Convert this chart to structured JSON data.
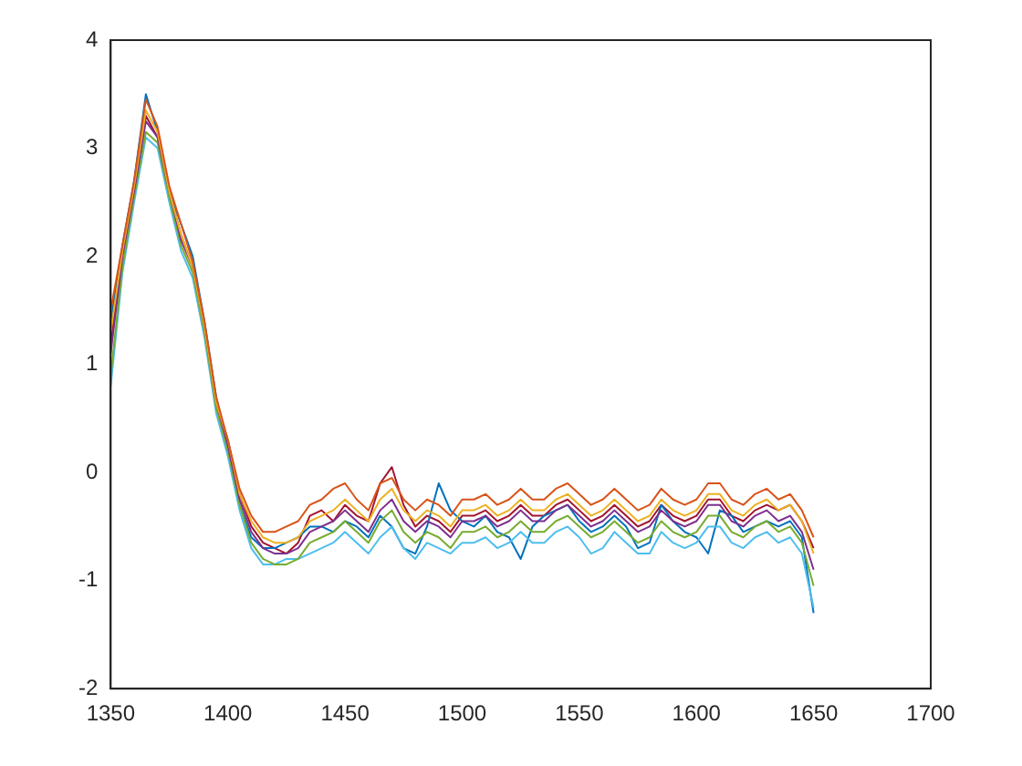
{
  "chart_data": {
    "type": "line",
    "x": [
      1350,
      1355,
      1360,
      1365,
      1370,
      1375,
      1380,
      1385,
      1390,
      1395,
      1400,
      1405,
      1410,
      1415,
      1420,
      1425,
      1430,
      1435,
      1440,
      1445,
      1450,
      1455,
      1460,
      1465,
      1470,
      1475,
      1480,
      1485,
      1490,
      1495,
      1500,
      1505,
      1510,
      1515,
      1520,
      1525,
      1530,
      1535,
      1540,
      1545,
      1550,
      1555,
      1560,
      1565,
      1570,
      1575,
      1580,
      1585,
      1590,
      1595,
      1600,
      1605,
      1610,
      1615,
      1620,
      1625,
      1630,
      1635,
      1640,
      1645,
      1650
    ],
    "xlim": [
      1350,
      1700
    ],
    "xticks": [
      1350,
      1400,
      1450,
      1500,
      1550,
      1600,
      1650,
      1700
    ],
    "ylim": [
      -2,
      4
    ],
    "yticks": [
      -2,
      -1,
      0,
      1,
      2,
      3,
      4
    ],
    "grid": false,
    "legend": false,
    "marker": "none",
    "line_style": "solid",
    "series": [
      {
        "color": "#d95319",
        "values": [
          1.5,
          2.1,
          2.7,
          3.45,
          3.2,
          2.65,
          2.3,
          1.95,
          1.4,
          0.7,
          0.3,
          -0.15,
          -0.4,
          -0.55,
          -0.55,
          -0.5,
          -0.45,
          -0.3,
          -0.25,
          -0.15,
          -0.1,
          -0.25,
          -0.35,
          -0.1,
          -0.05,
          -0.25,
          -0.35,
          -0.25,
          -0.3,
          -0.4,
          -0.25,
          -0.25,
          -0.2,
          -0.3,
          -0.25,
          -0.15,
          -0.25,
          -0.25,
          -0.15,
          -0.1,
          -0.2,
          -0.3,
          -0.25,
          -0.15,
          -0.25,
          -0.35,
          -0.3,
          -0.15,
          -0.25,
          -0.3,
          -0.25,
          -0.1,
          -0.1,
          -0.25,
          -0.3,
          -0.2,
          -0.15,
          -0.25,
          -0.2,
          -0.35,
          -0.6
        ]
      },
      {
        "color": "#edb120",
        "values": [
          1.3,
          2.05,
          2.65,
          3.35,
          3.15,
          2.6,
          2.2,
          1.9,
          1.35,
          0.65,
          0.3,
          -0.2,
          -0.45,
          -0.6,
          -0.65,
          -0.65,
          -0.6,
          -0.45,
          -0.4,
          -0.35,
          -0.25,
          -0.35,
          -0.45,
          -0.25,
          -0.15,
          -0.35,
          -0.45,
          -0.35,
          -0.4,
          -0.5,
          -0.35,
          -0.35,
          -0.3,
          -0.4,
          -0.35,
          -0.25,
          -0.35,
          -0.35,
          -0.25,
          -0.2,
          -0.3,
          -0.4,
          -0.35,
          -0.25,
          -0.35,
          -0.45,
          -0.4,
          -0.25,
          -0.35,
          -0.4,
          -0.35,
          -0.2,
          -0.2,
          -0.35,
          -0.4,
          -0.3,
          -0.25,
          -0.35,
          -0.3,
          -0.45,
          -0.75
        ]
      },
      {
        "color": "#7e2f8e",
        "values": [
          1.1,
          2.0,
          2.6,
          3.25,
          3.1,
          2.6,
          2.15,
          1.9,
          1.35,
          0.65,
          0.25,
          -0.25,
          -0.55,
          -0.7,
          -0.75,
          -0.75,
          -0.7,
          -0.55,
          -0.5,
          -0.45,
          -0.35,
          -0.45,
          -0.55,
          -0.35,
          -0.25,
          -0.45,
          -0.55,
          -0.45,
          -0.5,
          -0.6,
          -0.45,
          -0.45,
          -0.4,
          -0.5,
          -0.45,
          -0.35,
          -0.45,
          -0.45,
          -0.35,
          -0.3,
          -0.4,
          -0.5,
          -0.45,
          -0.35,
          -0.45,
          -0.55,
          -0.5,
          -0.35,
          -0.45,
          -0.5,
          -0.45,
          -0.3,
          -0.3,
          -0.45,
          -0.5,
          -0.4,
          -0.35,
          -0.45,
          -0.4,
          -0.55,
          -0.9
        ]
      },
      {
        "color": "#77ac30",
        "values": [
          0.9,
          1.9,
          2.55,
          3.15,
          3.05,
          2.55,
          2.1,
          1.85,
          1.3,
          0.6,
          0.2,
          -0.3,
          -0.65,
          -0.8,
          -0.85,
          -0.85,
          -0.8,
          -0.65,
          -0.6,
          -0.55,
          -0.45,
          -0.55,
          -0.65,
          -0.45,
          -0.35,
          -0.55,
          -0.65,
          -0.55,
          -0.6,
          -0.7,
          -0.55,
          -0.55,
          -0.5,
          -0.6,
          -0.55,
          -0.45,
          -0.55,
          -0.55,
          -0.45,
          -0.4,
          -0.5,
          -0.6,
          -0.55,
          -0.45,
          -0.55,
          -0.65,
          -0.6,
          -0.45,
          -0.55,
          -0.6,
          -0.55,
          -0.4,
          -0.4,
          -0.55,
          -0.6,
          -0.5,
          -0.45,
          -0.55,
          -0.5,
          -0.65,
          -1.05
        ]
      },
      {
        "color": "#4dbeee",
        "values": [
          0.8,
          1.85,
          2.5,
          3.1,
          3.0,
          2.5,
          2.05,
          1.8,
          1.25,
          0.55,
          0.15,
          -0.35,
          -0.7,
          -0.85,
          -0.85,
          -0.8,
          -0.8,
          -0.75,
          -0.7,
          -0.65,
          -0.55,
          -0.65,
          -0.75,
          -0.6,
          -0.5,
          -0.7,
          -0.8,
          -0.65,
          -0.7,
          -0.75,
          -0.65,
          -0.65,
          -0.6,
          -0.7,
          -0.65,
          -0.55,
          -0.65,
          -0.65,
          -0.55,
          -0.5,
          -0.6,
          -0.75,
          -0.7,
          -0.55,
          -0.65,
          -0.75,
          -0.75,
          -0.55,
          -0.65,
          -0.7,
          -0.65,
          -0.5,
          -0.5,
          -0.65,
          -0.7,
          -0.6,
          -0.55,
          -0.65,
          -0.6,
          -0.75,
          -1.25
        ]
      },
      {
        "color": "#0072bd",
        "values": [
          1.4,
          2.1,
          2.7,
          3.5,
          3.15,
          2.6,
          2.3,
          2.0,
          1.4,
          0.7,
          0.25,
          -0.3,
          -0.6,
          -0.7,
          -0.7,
          -0.65,
          -0.6,
          -0.5,
          -0.5,
          -0.55,
          -0.45,
          -0.5,
          -0.6,
          -0.4,
          -0.5,
          -0.7,
          -0.75,
          -0.5,
          -0.1,
          -0.35,
          -0.45,
          -0.5,
          -0.4,
          -0.55,
          -0.6,
          -0.8,
          -0.5,
          -0.4,
          -0.35,
          -0.3,
          -0.45,
          -0.55,
          -0.5,
          -0.4,
          -0.5,
          -0.7,
          -0.65,
          -0.3,
          -0.45,
          -0.55,
          -0.6,
          -0.75,
          -0.35,
          -0.4,
          -0.55,
          -0.5,
          -0.45,
          -0.5,
          -0.45,
          -0.6,
          -1.3
        ]
      },
      {
        "color": "#a2142f",
        "values": [
          1.2,
          2.0,
          2.65,
          3.3,
          3.1,
          2.6,
          2.2,
          1.9,
          1.35,
          0.65,
          0.3,
          -0.2,
          -0.5,
          -0.65,
          -0.7,
          -0.75,
          -0.65,
          -0.4,
          -0.35,
          -0.45,
          -0.3,
          -0.4,
          -0.45,
          -0.1,
          0.05,
          -0.3,
          -0.5,
          -0.4,
          -0.45,
          -0.55,
          -0.4,
          -0.4,
          -0.35,
          -0.45,
          -0.4,
          -0.3,
          -0.4,
          -0.4,
          -0.3,
          -0.25,
          -0.35,
          -0.45,
          -0.4,
          -0.3,
          -0.4,
          -0.5,
          -0.45,
          -0.3,
          -0.4,
          -0.45,
          -0.4,
          -0.25,
          -0.25,
          -0.4,
          -0.45,
          -0.35,
          -0.3,
          -0.35,
          -0.3,
          -0.45,
          -0.7
        ]
      }
    ]
  }
}
